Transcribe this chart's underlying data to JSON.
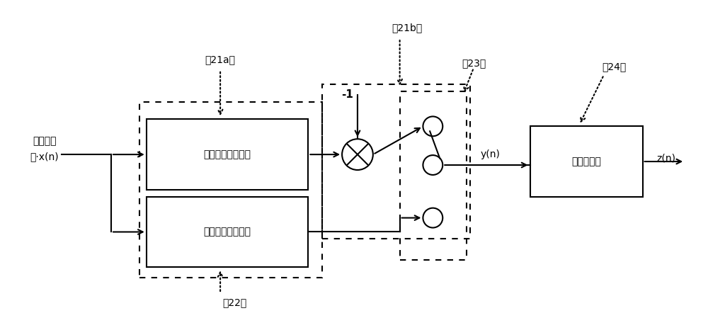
{
  "bg_color": "#ffffff",
  "label_input_line1": "基带复信",
  "label_input_line2": "号·x(n)",
  "label_real": "实部信号抽取模块",
  "label_imag": "虚部信号抽取模块",
  "label_post": "后解码模块",
  "label_21a": "（21a）",
  "label_21b": "（21b）",
  "label_22": "（22）",
  "label_23": "（23）",
  "label_24": "（24）",
  "label_neg1": "-1",
  "label_yn": "y(n)",
  "label_zn": "z(n)"
}
